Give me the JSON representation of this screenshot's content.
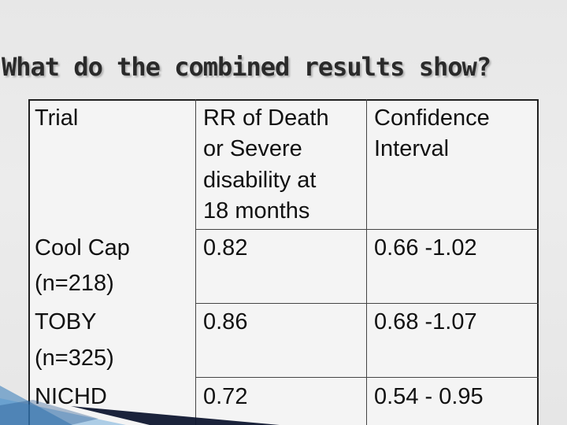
{
  "slide": {
    "title": "What do the combined results show?"
  },
  "table": {
    "headers": {
      "trial": "Trial",
      "rr": [
        "RR of Death",
        "or Severe",
        "disability at",
        "18 months"
      ],
      "ci": [
        "Confidence",
        "Interval"
      ]
    },
    "rows": [
      {
        "trial_name": "Cool Cap",
        "trial_n": "(n=218)",
        "rr": "0.82",
        "ci": "0.66 -1.02"
      },
      {
        "trial_name": "TOBY",
        "trial_n": "(n=325)",
        "rr": "0.86",
        "ci": "0.68 -1.07"
      },
      {
        "trial_name": "NICHD",
        "trial_n": "",
        "rr": "0.72",
        "ci": "0.54 - 0.95"
      }
    ]
  },
  "colors": {
    "background": "#e9e9e9",
    "text": "#111111",
    "accent_blue": "#2f78b8",
    "accent_dark": "#0f1730"
  }
}
